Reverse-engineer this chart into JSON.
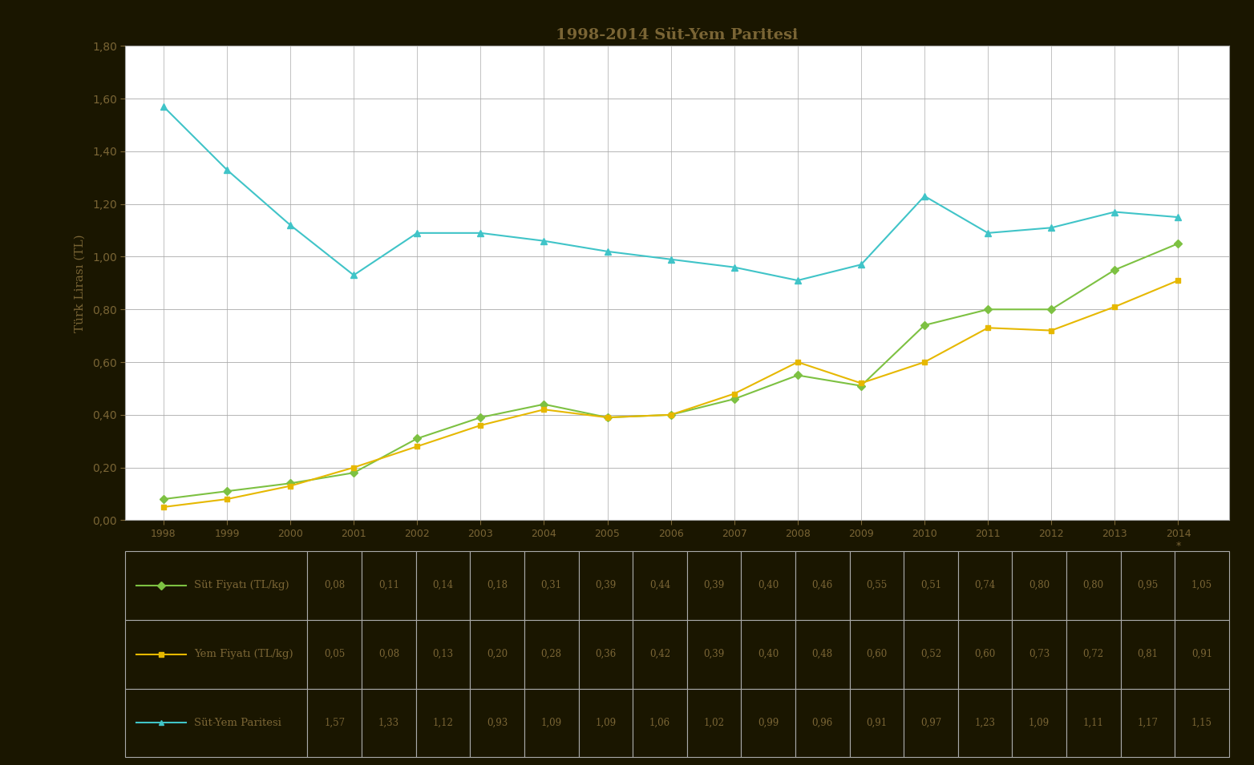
{
  "title": "1998-2014 Süt-Yem Paritesi",
  "years": [
    1998,
    1999,
    2000,
    2001,
    2002,
    2003,
    2004,
    2005,
    2006,
    2007,
    2008,
    2009,
    2010,
    2011,
    2012,
    2013,
    2014
  ],
  "sut_fiyati": [
    0.08,
    0.11,
    0.14,
    0.18,
    0.31,
    0.39,
    0.44,
    0.39,
    0.4,
    0.46,
    0.55,
    0.51,
    0.74,
    0.8,
    0.8,
    0.95,
    1.05
  ],
  "yem_fiyati": [
    0.05,
    0.08,
    0.13,
    0.2,
    0.28,
    0.36,
    0.42,
    0.39,
    0.4,
    0.48,
    0.6,
    0.52,
    0.6,
    0.73,
    0.72,
    0.81,
    0.91
  ],
  "sut_yem_paritesi": [
    1.57,
    1.33,
    1.12,
    0.93,
    1.09,
    1.09,
    1.06,
    1.02,
    0.99,
    0.96,
    0.91,
    0.97,
    1.23,
    1.09,
    1.11,
    1.17,
    1.15
  ],
  "sut_color": "#7dc142",
  "yem_color": "#e6b800",
  "parite_color": "#40c4c8",
  "ylabel": "Türk Lirası (TL)",
  "ylim": [
    0.0,
    1.8
  ],
  "yticks": [
    0.0,
    0.2,
    0.4,
    0.6,
    0.8,
    1.0,
    1.2,
    1.4,
    1.6,
    1.8
  ],
  "outer_bg_color": "#1a1600",
  "plot_bg_color": "#ffffff",
  "text_color": "#7a6535",
  "grid_color": "#aaaaaa",
  "title_color": "#7a6535",
  "border_color": "#aaaaaa",
  "table_row_labels": [
    "Süt Fiyatı (TL/kg)",
    "Yem Fiyatı (TL/kg)",
    "Süt-Yem Paritesi"
  ],
  "last_year_label": "2014\n*"
}
